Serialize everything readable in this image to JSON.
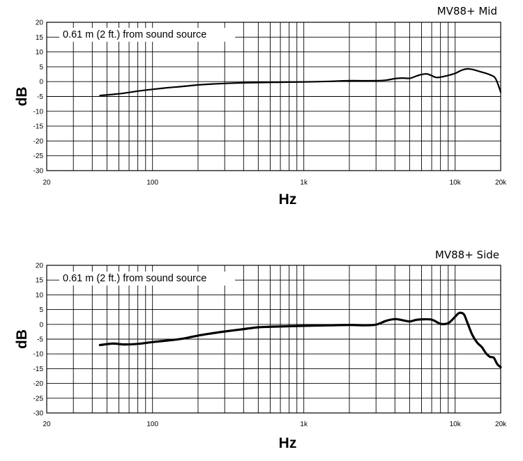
{
  "chart_data": [
    {
      "type": "line",
      "title": "MV88+ Mid",
      "annotation": "0.61 m (2 ft.) from sound source",
      "xlabel": "Hz",
      "ylabel": "dB",
      "xscale": "log",
      "xlim": [
        20,
        20000
      ],
      "ylim": [
        -30,
        20
      ],
      "xticks": [
        {
          "value": 20,
          "label": "20"
        },
        {
          "value": 100,
          "label": "100"
        },
        {
          "value": 1000,
          "label": "1k"
        },
        {
          "value": 10000,
          "label": "10k"
        },
        {
          "value": 20000,
          "label": "20k"
        }
      ],
      "yticks": [
        20,
        15,
        10,
        5,
        0,
        -5,
        -10,
        -15,
        -20,
        -25,
        -30
      ],
      "grid": true,
      "series": [
        {
          "x": [
            45,
            55,
            65,
            80,
            100,
            130,
            160,
            200,
            250,
            300,
            400,
            500,
            700,
            1000,
            1500,
            2000,
            3000,
            3500,
            4000,
            4500,
            5000,
            5500,
            6000,
            6500,
            7000,
            7500,
            8000,
            9000,
            10000,
            11000,
            12000,
            13000,
            15000,
            17000,
            18500,
            20000
          ],
          "y": [
            -4.7,
            -4.3,
            -3.9,
            -3.2,
            -2.6,
            -2.0,
            -1.6,
            -1.1,
            -0.8,
            -0.6,
            -0.4,
            -0.3,
            -0.2,
            -0.1,
            0.1,
            0.3,
            0.3,
            0.5,
            1.0,
            1.2,
            1.1,
            1.8,
            2.4,
            2.6,
            2.0,
            1.4,
            1.5,
            2.1,
            2.8,
            3.8,
            4.3,
            4.1,
            3.2,
            2.3,
            1.0,
            -3.5
          ]
        }
      ]
    },
    {
      "type": "line",
      "title": "MV88+  Side",
      "annotation": "0.61 m (2 ft.) from sound source",
      "xlabel": "Hz",
      "ylabel": "dB",
      "xscale": "log",
      "xlim": [
        20,
        20000
      ],
      "ylim": [
        -30,
        20
      ],
      "xticks": [
        {
          "value": 20,
          "label": "20"
        },
        {
          "value": 100,
          "label": "100"
        },
        {
          "value": 1000,
          "label": "1k"
        },
        {
          "value": 10000,
          "label": "10k"
        },
        {
          "value": 20000,
          "label": "20k"
        }
      ],
      "yticks": [
        20,
        15,
        10,
        5,
        0,
        -5,
        -10,
        -15,
        -20,
        -25,
        -30
      ],
      "grid": true,
      "series": [
        {
          "x": [
            45,
            55,
            65,
            80,
            100,
            130,
            160,
            200,
            250,
            300,
            400,
            500,
            700,
            1000,
            1500,
            2000,
            2500,
            3000,
            3500,
            4000,
            4500,
            5000,
            5500,
            6000,
            7000,
            8000,
            9000,
            10000,
            10500,
            11000,
            11500,
            12000,
            13000,
            14000,
            15000,
            16000,
            17000,
            18000,
            19000,
            20000
          ],
          "y": [
            -7.0,
            -6.5,
            -6.8,
            -6.6,
            -6.0,
            -5.4,
            -4.8,
            -3.8,
            -3.0,
            -2.4,
            -1.6,
            -1.0,
            -0.7,
            -0.5,
            -0.3,
            -0.2,
            -0.3,
            -0.1,
            1.2,
            1.8,
            1.4,
            1.0,
            1.5,
            1.7,
            1.6,
            0.2,
            0.4,
            2.6,
            3.7,
            3.9,
            3.2,
            0.8,
            -3.6,
            -6.2,
            -7.7,
            -9.8,
            -11.0,
            -11.3,
            -13.5,
            -14.5
          ]
        }
      ]
    }
  ]
}
